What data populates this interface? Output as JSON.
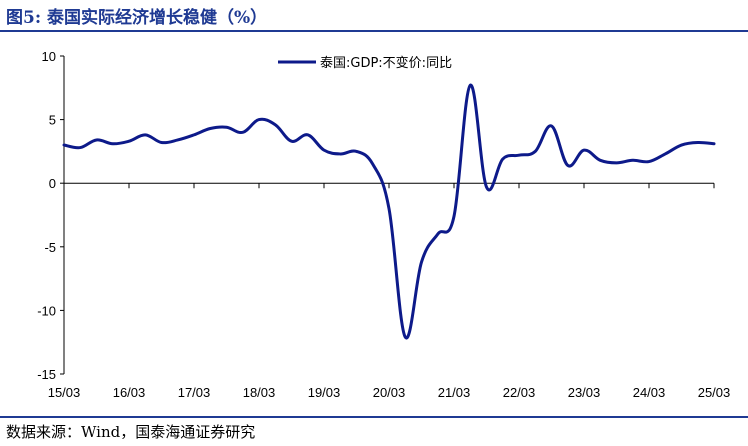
{
  "header": {
    "title": "图5:  泰国实际经济增长稳健（%）"
  },
  "footer": {
    "source": "数据来源：Wind，国泰海通证券研究"
  },
  "chart_data": {
    "type": "line",
    "title": "",
    "xlabel": "",
    "ylabel": "",
    "ylim": [
      -15,
      10
    ],
    "yticks": [
      10,
      5,
      0,
      -5,
      -10,
      -15
    ],
    "xticks": [
      "15/03",
      "16/03",
      "17/03",
      "18/03",
      "19/03",
      "20/03",
      "21/03",
      "22/03",
      "23/03",
      "24/03",
      "25/03"
    ],
    "legend_position": "top-center",
    "grid": false,
    "series": [
      {
        "name": "泰国:GDP:不变价:同比",
        "color": "#0d1a8a",
        "x": [
          "15/03",
          "15/06",
          "15/09",
          "15/12",
          "16/03",
          "16/06",
          "16/09",
          "16/12",
          "17/03",
          "17/06",
          "17/09",
          "17/12",
          "18/03",
          "18/06",
          "18/09",
          "18/12",
          "19/03",
          "19/06",
          "19/09",
          "19/12",
          "20/03",
          "20/06",
          "20/09",
          "20/12",
          "21/03",
          "21/06",
          "21/09",
          "21/12",
          "22/03",
          "22/06",
          "22/09",
          "22/12",
          "23/03",
          "23/06",
          "23/09",
          "23/12",
          "24/03",
          "24/06",
          "24/09",
          "24/12",
          "25/03"
        ],
        "values": [
          3.0,
          2.8,
          3.4,
          3.1,
          3.3,
          3.8,
          3.2,
          3.4,
          3.8,
          4.3,
          4.4,
          4.0,
          5.0,
          4.6,
          3.3,
          3.8,
          2.6,
          2.3,
          2.5,
          1.5,
          -2.0,
          -12.1,
          -6.2,
          -4.0,
          -2.6,
          7.7,
          -0.3,
          1.9,
          2.2,
          2.5,
          4.5,
          1.4,
          2.6,
          1.8,
          1.6,
          1.8,
          1.7,
          2.3,
          3.0,
          3.2,
          3.1
        ]
      }
    ]
  }
}
